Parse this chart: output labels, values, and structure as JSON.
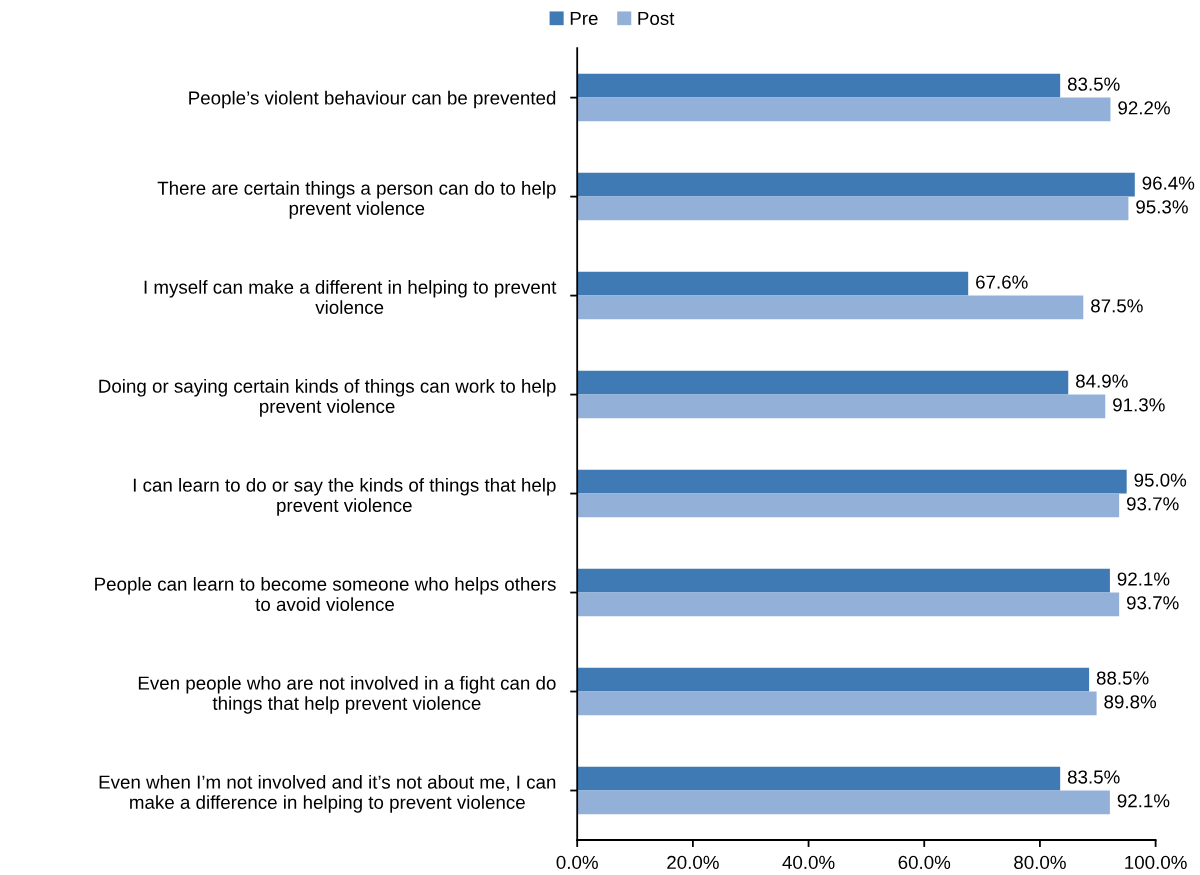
{
  "chart_data": {
    "type": "bar",
    "orientation": "horizontal",
    "legend": "top",
    "categories": [
      "People’s violent behaviour can be prevented",
      "There are certain things a person can do to help\nprevent violence",
      "I myself can make a different in helping to prevent\nviolence",
      "Doing or saying certain kinds of things can work to help\nprevent violence",
      "I can learn to do or say the kinds of things that help\nprevent violence",
      "People can learn to become someone who helps others\nto avoid violence",
      "Even people who are not involved in a fight can do\nthings that help prevent violence",
      "Even when I’m not involved and it’s not about me, I can\nmake a difference in helping to prevent violence"
    ],
    "series": [
      {
        "name": "Pre",
        "color": "#3f7ab4",
        "values": [
          83.5,
          96.4,
          67.6,
          84.9,
          95.0,
          92.1,
          88.5,
          83.5
        ],
        "value_labels": [
          "83.5%",
          "96.4%",
          "67.6%",
          "84.9%",
          "95.0%",
          "92.1%",
          "88.5%",
          "83.5%"
        ]
      },
      {
        "name": "Post",
        "color": "#93b1d8",
        "values": [
          92.2,
          95.3,
          87.5,
          91.3,
          93.7,
          93.7,
          89.8,
          92.1
        ],
        "value_labels": [
          "92.2%",
          "95.3%",
          "87.5%",
          "91.3%",
          "93.7%",
          "93.7%",
          "89.8%",
          "92.1%"
        ]
      }
    ],
    "xlim": [
      0,
      100
    ],
    "xticks": [
      {
        "value": 0,
        "label": "0.0%"
      },
      {
        "value": 20,
        "label": "20.0%"
      },
      {
        "value": 40,
        "label": "40.0%"
      },
      {
        "value": 60,
        "label": "60.0%"
      },
      {
        "value": 80,
        "label": "80.0%"
      },
      {
        "value": 100,
        "label": "100.0%"
      }
    ]
  }
}
